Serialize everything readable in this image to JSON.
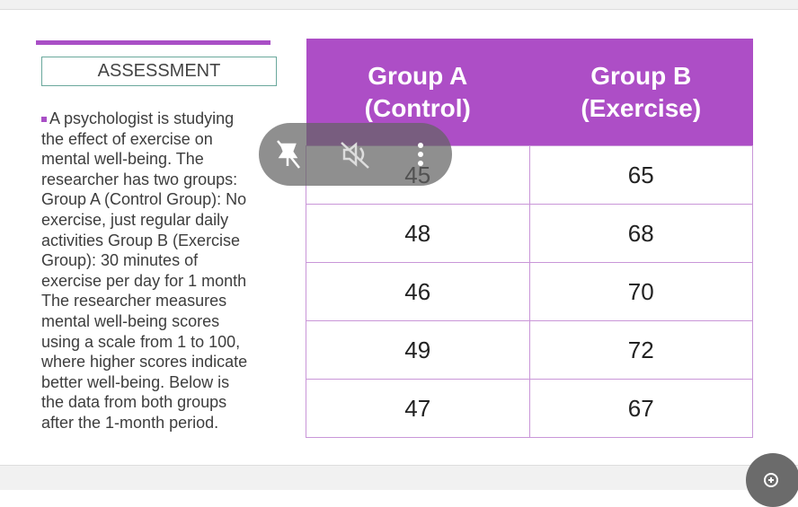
{
  "header": {
    "title": "ASSESSMENT"
  },
  "body": {
    "lines": [
      "A psychologist is studying",
      "the effect of exercise on",
      "mental well-being. The",
      "researcher has two groups:",
      "Group A (Control Group): No",
      "exercise, just regular daily",
      "activities Group B (Exercise",
      "Group): 30 minutes of",
      "exercise per day for 1 month",
      "The researcher measures",
      "mental well-being scores",
      "using a scale from 1 to 100,",
      "where higher scores indicate",
      "better well-being. Below is",
      "the data from both groups",
      "after the 1-month period."
    ]
  },
  "table": {
    "columns": [
      [
        "Group A",
        "(Control)"
      ],
      [
        "Group B",
        "(Exercise)"
      ]
    ],
    "rows": [
      [
        45,
        65
      ],
      [
        48,
        68
      ],
      [
        46,
        70
      ],
      [
        49,
        72
      ],
      [
        47,
        67
      ]
    ]
  }
}
